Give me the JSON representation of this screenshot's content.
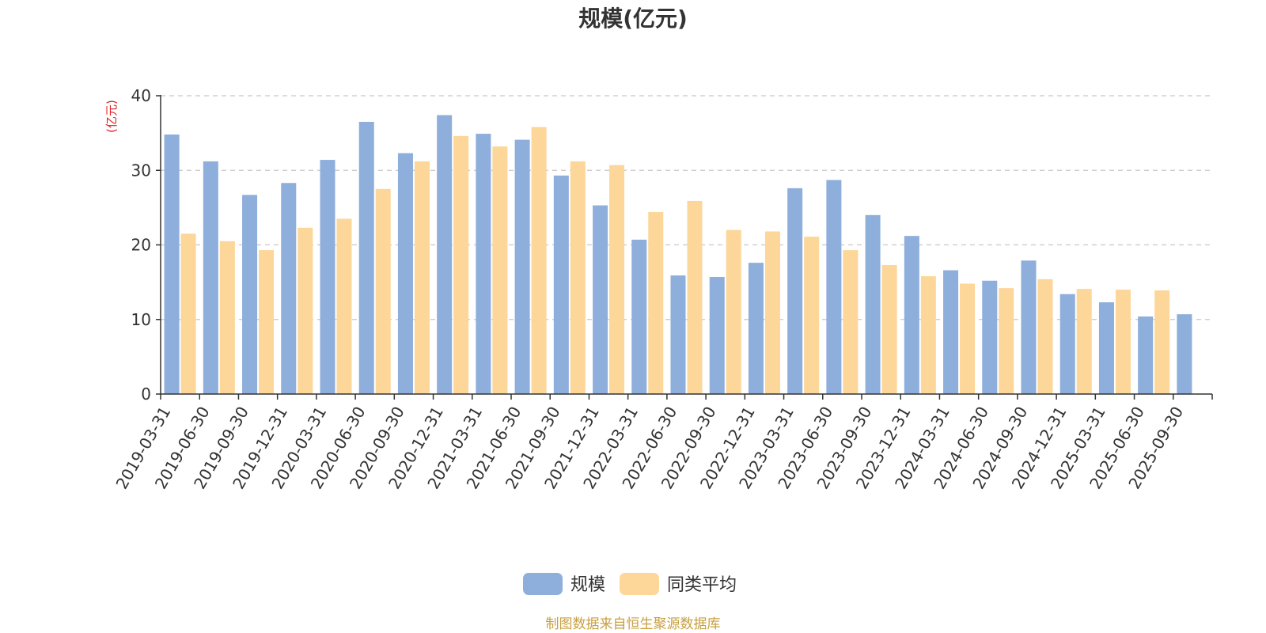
{
  "chart_data": {
    "type": "bar",
    "title": "规模(亿元)",
    "ylabel": "(亿元)",
    "ylim": [
      0,
      40
    ],
    "yticks": [
      0,
      10,
      20,
      30,
      40
    ],
    "grid": true,
    "legend_position": "bottom-center",
    "categories": [
      "2019-03-31",
      "2019-06-30",
      "2019-09-30",
      "2019-12-31",
      "2020-03-31",
      "2020-06-30",
      "2020-09-30",
      "2020-12-31",
      "2021-03-31",
      "2021-06-30",
      "2021-09-30",
      "2021-12-31",
      "2022-03-31",
      "2022-06-30",
      "2022-09-30",
      "2022-12-31",
      "2023-03-31",
      "2023-06-30",
      "2023-09-30",
      "2023-12-31",
      "2024-03-31",
      "2024-06-30",
      "2024-09-30",
      "2024-12-31",
      "2025-03-31",
      "2025-06-30",
      "2025-09-30"
    ],
    "series": [
      {
        "name": "规模",
        "color": "#8eaedc",
        "values": [
          34.8,
          31.2,
          26.7,
          28.3,
          31.4,
          36.5,
          32.3,
          37.4,
          34.9,
          34.1,
          29.3,
          25.3,
          20.7,
          15.9,
          15.7,
          17.6,
          27.6,
          28.7,
          24.0,
          21.2,
          16.6,
          15.2,
          17.9,
          13.4,
          12.3,
          10.4,
          10.7
        ]
      },
      {
        "name": "同类平均",
        "color": "#fdd699",
        "values": [
          21.5,
          20.5,
          19.3,
          22.3,
          23.5,
          27.5,
          31.2,
          34.6,
          33.2,
          35.8,
          31.2,
          30.7,
          24.4,
          25.9,
          22.0,
          21.8,
          21.1,
          19.3,
          17.3,
          15.8,
          14.8,
          14.2,
          15.4,
          14.1,
          14.0,
          13.9,
          null
        ]
      }
    ]
  },
  "source": {
    "text": "制图数据来自恒生聚源数据库",
    "color": "#c8a040"
  },
  "unit_color": "#e02020"
}
